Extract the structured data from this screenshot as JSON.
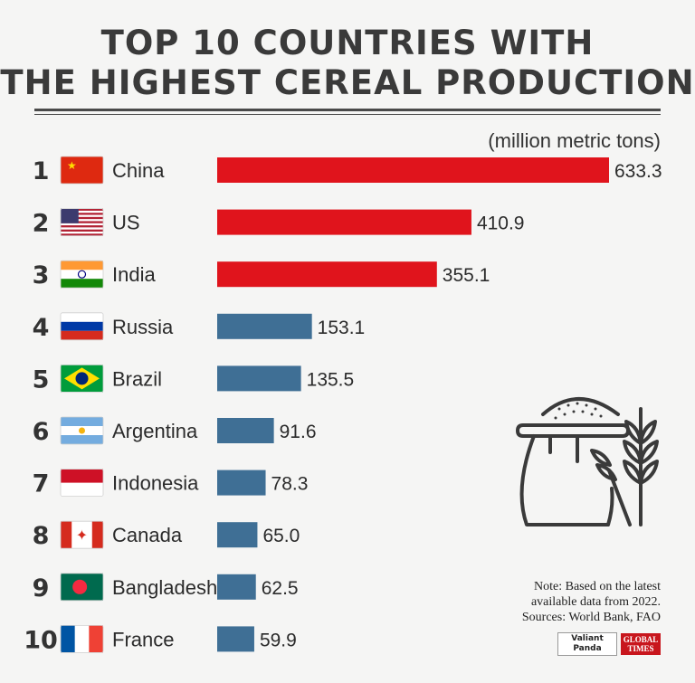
{
  "title": {
    "line1": "TOP 10 COUNTRIES WITH",
    "line2": "THE HIGHEST CEREAL PRODUCTION"
  },
  "unit_label": "(million metric tons)",
  "note": {
    "line1": "Note: Based on the latest",
    "line2": "available data from 2022.",
    "line3": "Sources: World Bank, FAO"
  },
  "logos": {
    "valiant_line1": "Valiant",
    "valiant_line2": "Panda",
    "global_line1": "GLOBAL",
    "global_line2": "TIMES"
  },
  "colors": {
    "top3": "#e0141c",
    "others": "#3f6f95",
    "text": "#2b2b2b"
  },
  "chart_data": {
    "type": "bar",
    "orientation": "horizontal",
    "title": "TOP 10 COUNTRIES WITH THE HIGHEST CEREAL PRODUCTION",
    "unit": "(million metric tons)",
    "ranks": [
      "1",
      "2",
      "3",
      "4",
      "5",
      "6",
      "7",
      "8",
      "9",
      "10"
    ],
    "categories": [
      "China",
      "US",
      "India",
      "Russia",
      "Brazil",
      "Argentina",
      "Indonesia",
      "Canada",
      "Bangladesh",
      "France"
    ],
    "values": [
      633.3,
      410.9,
      355.1,
      153.1,
      135.5,
      91.6,
      78.3,
      65.0,
      62.5,
      59.9
    ],
    "value_labels": [
      "633.3",
      "410.9",
      "355.1",
      "153.1",
      "135.5",
      "91.6",
      "78.3",
      "65.0",
      "62.5",
      "59.9"
    ],
    "flags": [
      "china-flag",
      "us-flag",
      "india-flag",
      "russia-flag",
      "brazil-flag",
      "argentina-flag",
      "indonesia-flag",
      "canada-flag",
      "bangladesh-flag",
      "france-flag"
    ],
    "highlight_count": 3,
    "xlim": [
      0,
      633.3
    ]
  }
}
